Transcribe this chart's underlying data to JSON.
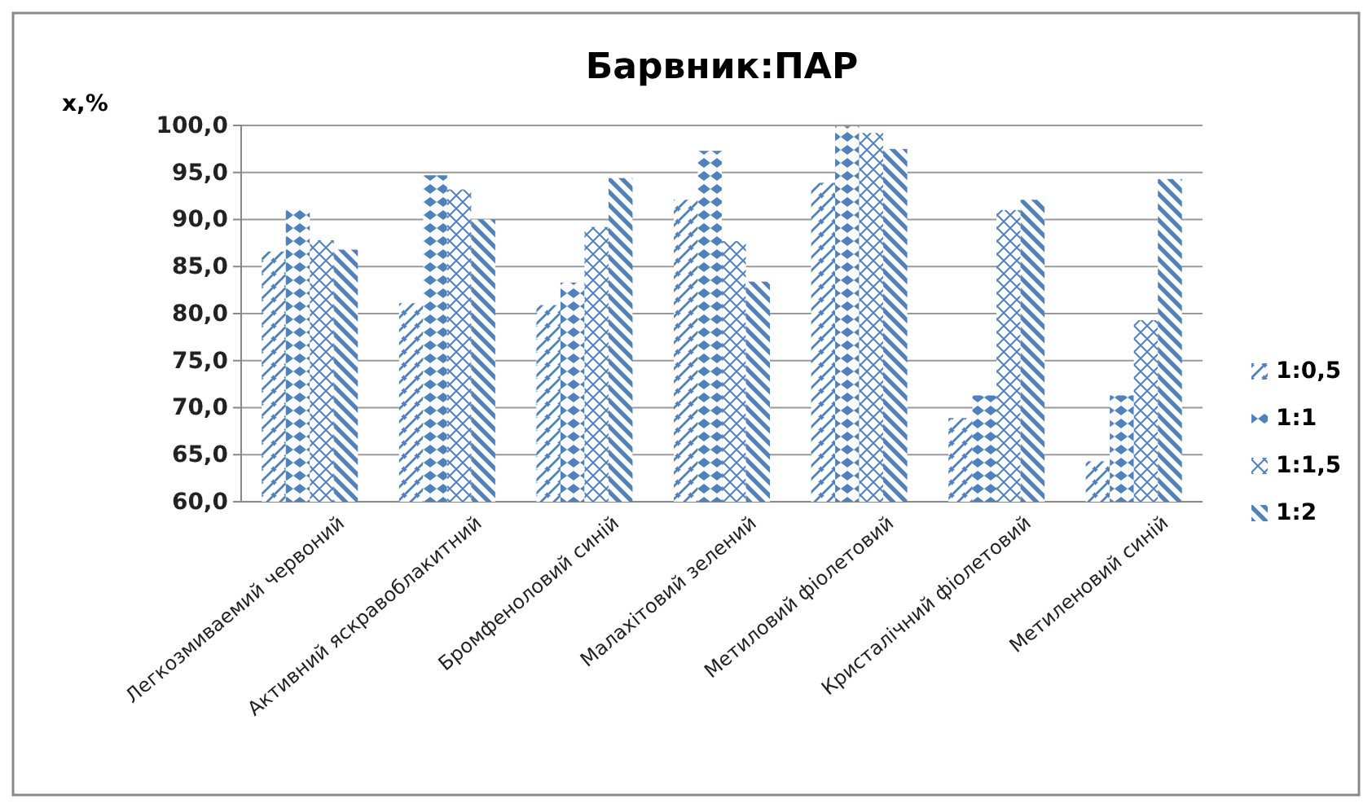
{
  "chart_data": {
    "type": "bar",
    "title": "Барвник:ПАР",
    "ylabel": "x,%",
    "categories": [
      "Легкозмиваемий червоний",
      "Активний яскравоблакитний",
      "Бромфеноловий синій",
      "Малахітовий зелений",
      "Метиловий фіолетовий",
      "Кристалічний фіолетовий",
      "Метиленовий синій"
    ],
    "series": [
      {
        "name": "1:0,5",
        "color": "#4f81bd",
        "values": [
          86.6,
          81.1,
          80.9,
          92.1,
          93.9,
          68.9,
          64.3
        ]
      },
      {
        "name": "1:1",
        "color": "#4f81bd",
        "values": [
          91.1,
          94.7,
          83.3,
          97.3,
          99.9,
          71.3,
          71.3
        ]
      },
      {
        "name": "1:1,5",
        "color": "#4f81bd",
        "values": [
          87.8,
          93.2,
          89.2,
          87.7,
          99.2,
          91.0,
          79.3
        ]
      },
      {
        "name": "1:2",
        "color": "#4f81bd",
        "values": [
          86.8,
          90.0,
          94.4,
          83.4,
          97.5,
          92.1,
          94.3
        ]
      }
    ],
    "ylim": [
      60,
      100
    ],
    "yticks": [
      {
        "value": 60,
        "label": "60,0"
      },
      {
        "value": 65,
        "label": "65,0"
      },
      {
        "value": 70,
        "label": "70,0"
      },
      {
        "value": 75,
        "label": "75,0"
      },
      {
        "value": 80,
        "label": "80,0"
      },
      {
        "value": 85,
        "label": "85,0"
      },
      {
        "value": 90,
        "label": "90,0"
      },
      {
        "value": 95,
        "label": "95,0"
      },
      {
        "value": 100,
        "label": "100,0"
      }
    ],
    "grid": "y",
    "legend": "right"
  }
}
